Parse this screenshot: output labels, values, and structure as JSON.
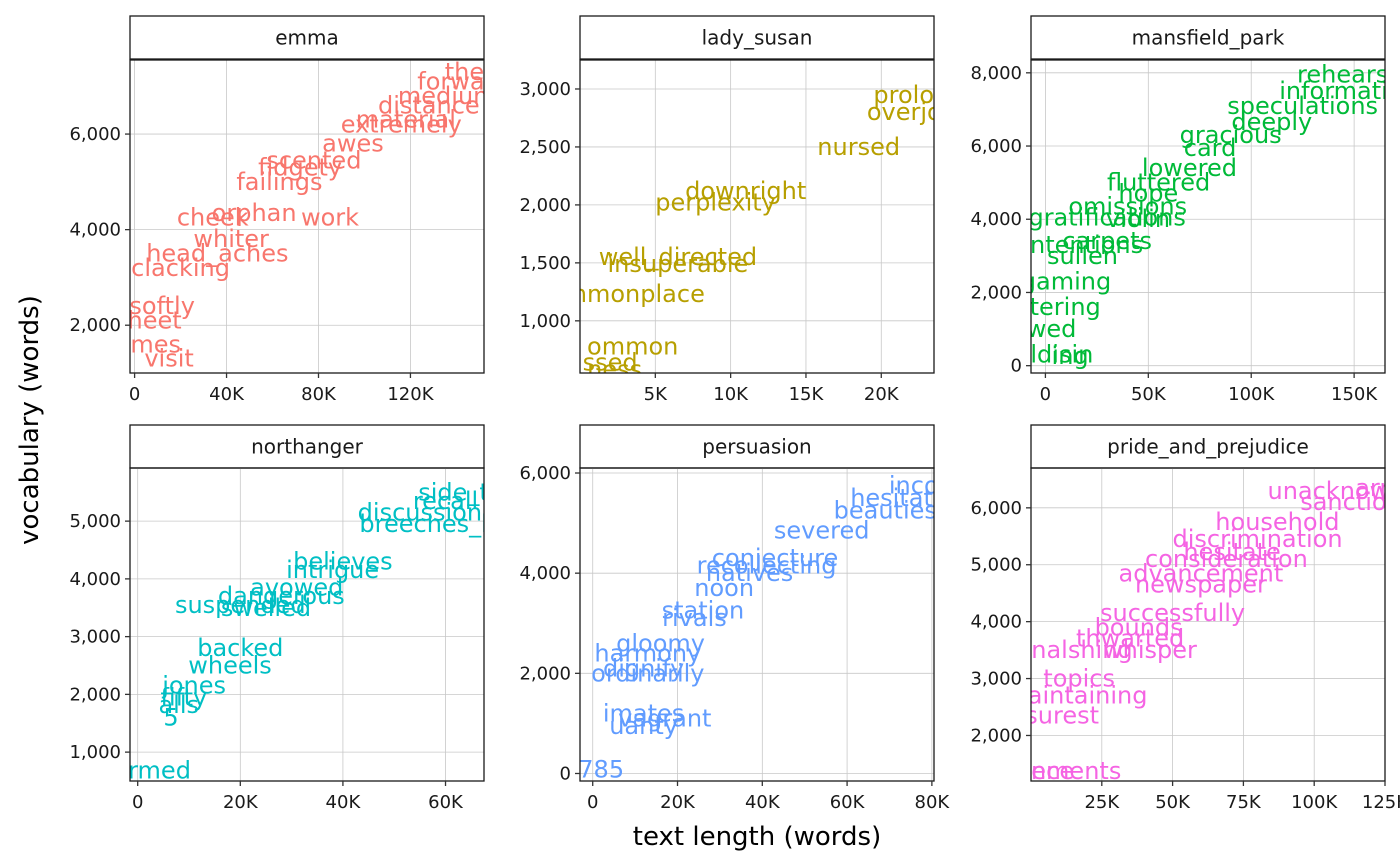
{
  "chart_data": {
    "type": "scatter",
    "xlabel": "text length (words)",
    "ylabel": "vocabulary (words)",
    "panels": [
      {
        "title": "emma",
        "color": "#F8766D",
        "xlim": [
          -2000,
          152000
        ],
        "ylim": [
          1000,
          7550
        ],
        "xticks": [
          0,
          40000,
          80000,
          120000
        ],
        "xtick_labels": [
          "0",
          "40K",
          "80K",
          "120K"
        ],
        "yticks": [
          2000,
          4000,
          6000
        ],
        "ytick_labels": [
          "2,000",
          "4,000",
          "6,000"
        ],
        "points": [
          {
            "label": "theod",
            "x": 150000,
            "y": 7300
          },
          {
            "label": "forward",
            "x": 143000,
            "y": 7100
          },
          {
            "label": "medium",
            "x": 136000,
            "y": 6800
          },
          {
            "label": "distance",
            "x": 128000,
            "y": 6600
          },
          {
            "label": "material",
            "x": 118000,
            "y": 6300
          },
          {
            "label": "extremely",
            "x": 116000,
            "y": 6200
          },
          {
            "label": "awes",
            "x": 95000,
            "y": 5800
          },
          {
            "label": "scented",
            "x": 78000,
            "y": 5450
          },
          {
            "label": "fidgety",
            "x": 72000,
            "y": 5300
          },
          {
            "label": "failings",
            "x": 63000,
            "y": 5000
          },
          {
            "label": "orphan",
            "x": 52000,
            "y": 4350
          },
          {
            "label": "cheek",
            "x": 34000,
            "y": 4250
          },
          {
            "label": "work",
            "x": 85000,
            "y": 4250
          },
          {
            "label": "whiter",
            "x": 42000,
            "y": 3800
          },
          {
            "label": "head_aches",
            "x": 36000,
            "y": 3500
          },
          {
            "label": "clacking",
            "x": 20000,
            "y": 3200
          },
          {
            "label": "softly",
            "x": 12000,
            "y": 2400
          },
          {
            "label": "sheet",
            "x": 6000,
            "y": 2100
          },
          {
            "label": "ames",
            "x": 6000,
            "y": 1600
          },
          {
            "label": "visit",
            "x": 15000,
            "y": 1300
          }
        ]
      },
      {
        "title": "lady_susan",
        "color": "#B79F00",
        "xlim": [
          0,
          23500
        ],
        "ylim": [
          550,
          3250
        ],
        "xticks": [
          5000,
          10000,
          15000,
          20000
        ],
        "xtick_labels": [
          "5K",
          "10K",
          "15K",
          "20K"
        ],
        "yticks": [
          1000,
          1500,
          2000,
          2500,
          3000
        ],
        "ytick_labels": [
          "1,000",
          "1,500",
          "2,000",
          "2,500",
          "3,000"
        ],
        "points": [
          {
            "label": "prolong",
            "x": 22500,
            "y": 2950
          },
          {
            "label": "overjoy",
            "x": 22000,
            "y": 2800
          },
          {
            "label": "nursed",
            "x": 18500,
            "y": 2500
          },
          {
            "label": "downright",
            "x": 11000,
            "y": 2120
          },
          {
            "label": "perplexity",
            "x": 9000,
            "y": 2020
          },
          {
            "label": "well_directed",
            "x": 6500,
            "y": 1550
          },
          {
            "label": "insuperable",
            "x": 6500,
            "y": 1490
          },
          {
            "label": "mmonplace",
            "x": 3600,
            "y": 1230
          },
          {
            "label": "ommon",
            "x": 3500,
            "y": 780
          },
          {
            "label": "ssed",
            "x": 2000,
            "y": 640
          },
          {
            "label": "ness",
            "x": 2300,
            "y": 580
          }
        ]
      },
      {
        "title": "mansfield_park",
        "color": "#00BA38",
        "xlim": [
          -7000,
          165000
        ],
        "ylim": [
          -200,
          8350
        ],
        "xticks": [
          0,
          50000,
          100000,
          150000
        ],
        "xtick_labels": [
          "0",
          "50K",
          "100K",
          "150K"
        ],
        "yticks": [
          0,
          2000,
          4000,
          6000,
          8000
        ],
        "ytick_labels": [
          "0",
          "2,000",
          "4,000",
          "6,000",
          "8,000"
        ],
        "points": [
          {
            "label": "rehearse",
            "x": 148000,
            "y": 7950
          },
          {
            "label": "informati",
            "x": 140000,
            "y": 7500
          },
          {
            "label": "speculations",
            "x": 125000,
            "y": 7100
          },
          {
            "label": "deeply",
            "x": 110000,
            "y": 6650
          },
          {
            "label": "gracious",
            "x": 90000,
            "y": 6300
          },
          {
            "label": "card",
            "x": 80000,
            "y": 5950
          },
          {
            "label": "lowered",
            "x": 70000,
            "y": 5400
          },
          {
            "label": "fluttered",
            "x": 55000,
            "y": 5000
          },
          {
            "label": "hope",
            "x": 50000,
            "y": 4700
          },
          {
            "label": "omissions",
            "x": 40000,
            "y": 4350
          },
          {
            "label": "violin",
            "x": 45000,
            "y": 4000
          },
          {
            "label": "gratifications",
            "x": 30000,
            "y": 4050
          },
          {
            "label": "carpets",
            "x": 30000,
            "y": 3400
          },
          {
            "label": "ntentions",
            "x": 20000,
            "y": 3300
          },
          {
            "label": "sullen",
            "x": 18000,
            "y": 3000
          },
          {
            "label": "gaming",
            "x": 10000,
            "y": 2300
          },
          {
            "label": "ltering",
            "x": 8000,
            "y": 1600
          },
          {
            "label": "wed",
            "x": 3000,
            "y": 1000
          },
          {
            "label": "ldisin",
            "x": 8000,
            "y": 300
          },
          {
            "label": "ing",
            "x": 12000,
            "y": 260
          }
        ]
      },
      {
        "title": "northanger",
        "color": "#00BFC4",
        "xlim": [
          -1500,
          67500
        ],
        "ylim": [
          500,
          5920
        ],
        "xticks": [
          0,
          20000,
          40000,
          60000
        ],
        "xtick_labels": [
          "0",
          "20K",
          "40K",
          "60K"
        ],
        "yticks": [
          1000,
          2000,
          3000,
          4000,
          5000
        ],
        "ytick_labels": [
          "1,000",
          "2,000",
          "3,000",
          "4,000",
          "5,000"
        ],
        "points": [
          {
            "label": "side_ta",
            "x": 63000,
            "y": 5500
          },
          {
            "label": "recall",
            "x": 60000,
            "y": 5350
          },
          {
            "label": "discussion",
            "x": 55000,
            "y": 5150
          },
          {
            "label": "breeches_ba",
            "x": 58000,
            "y": 4950
          },
          {
            "label": "believes",
            "x": 40000,
            "y": 4300
          },
          {
            "label": "intrigue",
            "x": 38000,
            "y": 4150
          },
          {
            "label": "avowed",
            "x": 31000,
            "y": 3850
          },
          {
            "label": "dangerous",
            "x": 28000,
            "y": 3700
          },
          {
            "label": "swelled",
            "x": 25000,
            "y": 3500
          },
          {
            "label": "suspended",
            "x": 20000,
            "y": 3550
          },
          {
            "label": "backed",
            "x": 20000,
            "y": 2800
          },
          {
            "label": "wheels",
            "x": 18000,
            "y": 2500
          },
          {
            "label": "jones",
            "x": 11000,
            "y": 2150
          },
          {
            "label": "fifty",
            "x": 9000,
            "y": 1950
          },
          {
            "label": "alls",
            "x": 8000,
            "y": 1820
          },
          {
            "label": "5",
            "x": 6500,
            "y": 1600
          },
          {
            "label": "formed",
            "x": 2000,
            "y": 680
          }
        ]
      },
      {
        "title": "persuasion",
        "color": "#619CFF",
        "xlim": [
          -3000,
          80500
        ],
        "ylim": [
          -150,
          6100
        ],
        "xticks": [
          0,
          20000,
          40000,
          60000,
          80000
        ],
        "xtick_labels": [
          "0",
          "20K",
          "40K",
          "60K",
          "80K"
        ],
        "yticks": [
          0,
          2000,
          4000,
          6000
        ],
        "ytick_labels": [
          "0",
          "2,000",
          "4,000",
          "6,000"
        ],
        "points": [
          {
            "label": "incons",
            "x": 79000,
            "y": 5750
          },
          {
            "label": "hesitatio",
            "x": 73000,
            "y": 5500
          },
          {
            "label": "beauties",
            "x": 69000,
            "y": 5250
          },
          {
            "label": "severed",
            "x": 54000,
            "y": 4850
          },
          {
            "label": "conjecture",
            "x": 43000,
            "y": 4300
          },
          {
            "label": "recollecting",
            "x": 41000,
            "y": 4150
          },
          {
            "label": "natives",
            "x": 37000,
            "y": 4000
          },
          {
            "label": "noon",
            "x": 31000,
            "y": 3700
          },
          {
            "label": "station",
            "x": 26000,
            "y": 3250
          },
          {
            "label": "rivals",
            "x": 24000,
            "y": 3100
          },
          {
            "label": "gloomy",
            "x": 16000,
            "y": 2600
          },
          {
            "label": "harmony",
            "x": 13000,
            "y": 2400
          },
          {
            "label": "dignify",
            "x": 12000,
            "y": 2100
          },
          {
            "label": "ordinarily",
            "x": 13000,
            "y": 2000
          },
          {
            "label": "imates",
            "x": 12000,
            "y": 1200
          },
          {
            "label": "vagrant",
            "x": 17000,
            "y": 1100
          },
          {
            "label": "uanty",
            "x": 12000,
            "y": 950
          },
          {
            "label": "785",
            "x": 2000,
            "y": 80
          }
        ]
      },
      {
        "title": "pride_and_prejudice",
        "color": "#F564E3",
        "xlim": [
          0,
          125000
        ],
        "ylim": [
          1200,
          6700
        ],
        "xticks": [
          25000,
          50000,
          75000,
          100000,
          125000
        ],
        "xtick_labels": [
          "25K",
          "50K",
          "75K",
          "100K",
          "125K"
        ],
        "yticks": [
          2000,
          3000,
          4000,
          5000,
          6000
        ],
        "ytick_labels": [
          "2,000",
          "3,000",
          "4,000",
          "5,000",
          "6,000"
        ],
        "points": [
          {
            "label": "arre",
            "x": 123000,
            "y": 6350
          },
          {
            "label": "unacknow",
            "x": 105000,
            "y": 6300
          },
          {
            "label": "sanction",
            "x": 113000,
            "y": 6100
          },
          {
            "label": "household",
            "x": 87000,
            "y": 5750
          },
          {
            "label": "discrimination",
            "x": 80000,
            "y": 5450
          },
          {
            "label": "hesitate",
            "x": 71000,
            "y": 5220
          },
          {
            "label": "consideration",
            "x": 69000,
            "y": 5100
          },
          {
            "label": "advancement",
            "x": 60000,
            "y": 4850
          },
          {
            "label": "newspaper",
            "x": 60000,
            "y": 4650
          },
          {
            "label": "successfully",
            "x": 50000,
            "y": 4150
          },
          {
            "label": "bounds",
            "x": 38000,
            "y": 3900
          },
          {
            "label": "thwarted",
            "x": 35000,
            "y": 3700
          },
          {
            "label": "whisper",
            "x": 42000,
            "y": 3500
          },
          {
            "label": "nalshing",
            "x": 18000,
            "y": 3500
          },
          {
            "label": "topics",
            "x": 17000,
            "y": 3000
          },
          {
            "label": "aintaining",
            "x": 20000,
            "y": 2700
          },
          {
            "label": "surest",
            "x": 11000,
            "y": 2350
          },
          {
            "label": "ements",
            "x": 16000,
            "y": 1380
          },
          {
            "label": "ence",
            "x": 5000,
            "y": 1380
          }
        ]
      }
    ]
  }
}
